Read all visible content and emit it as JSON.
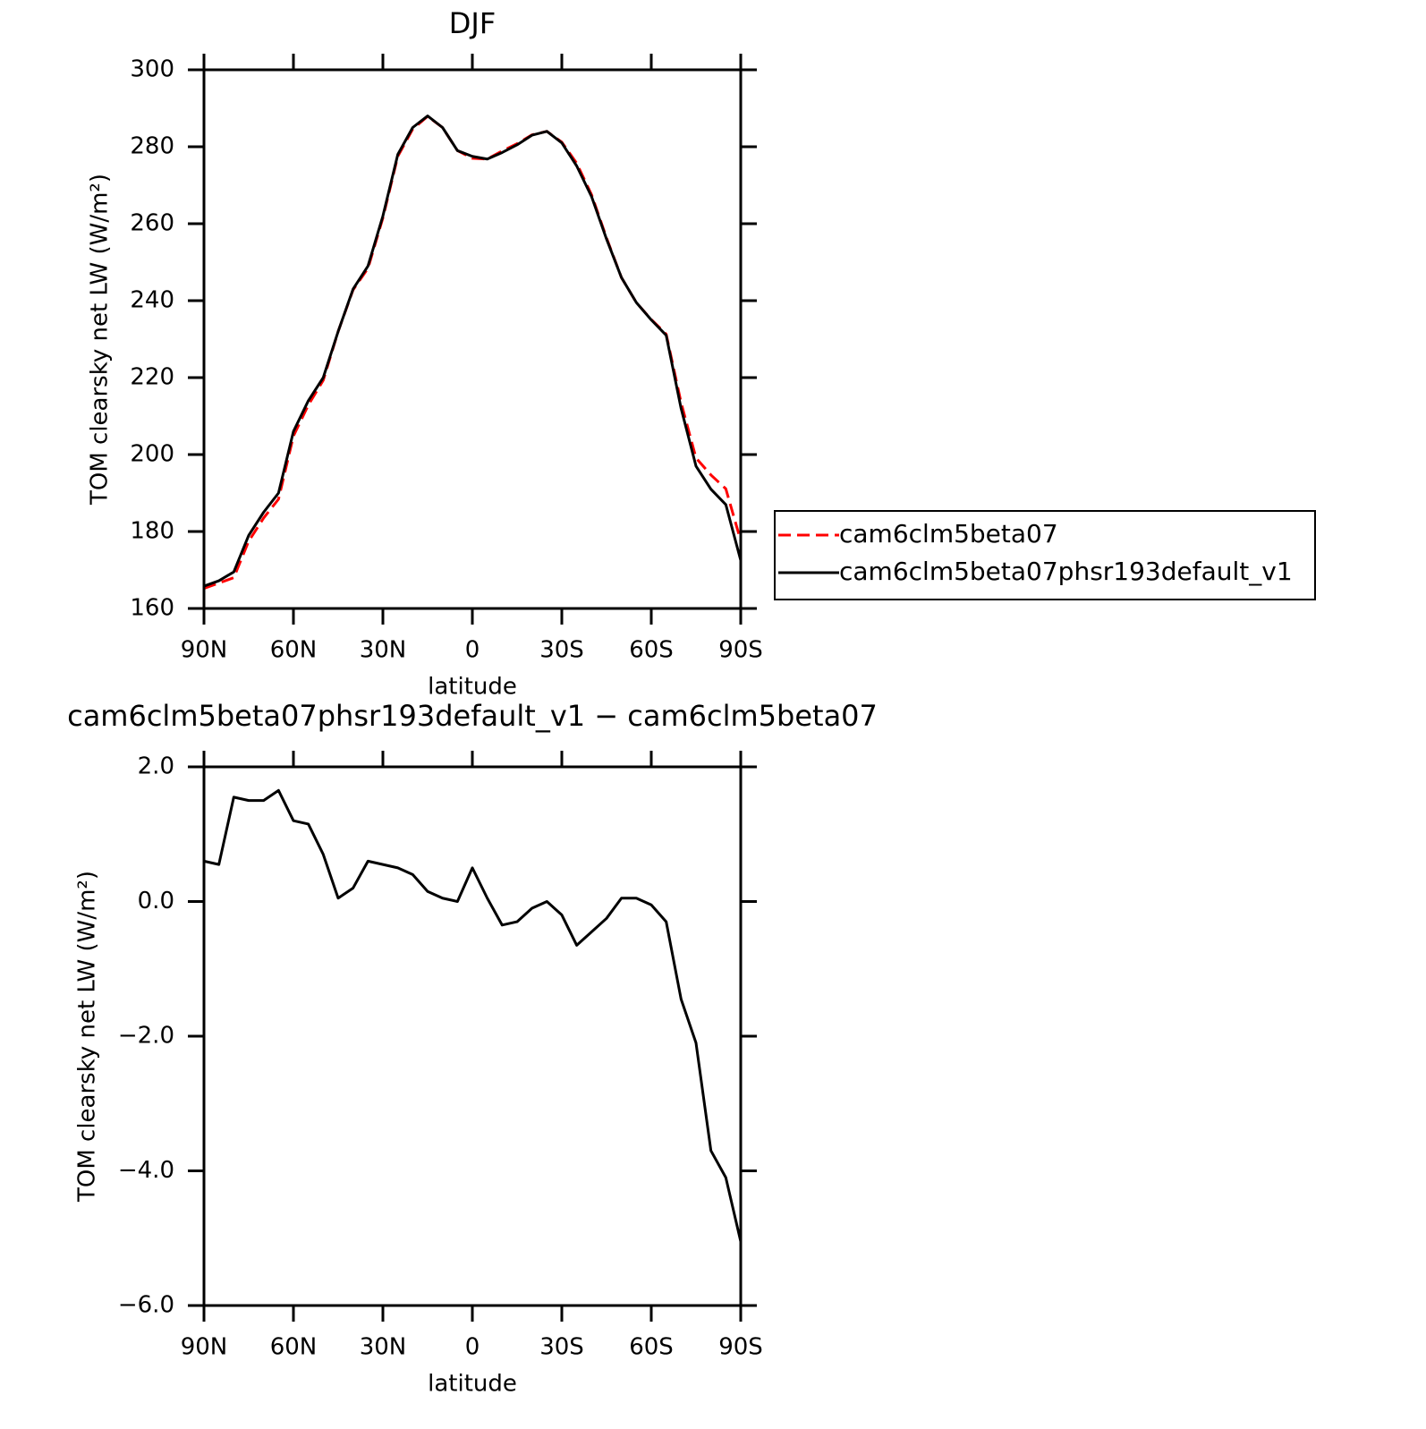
{
  "chart_data": [
    {
      "type": "line",
      "title": "DJF",
      "xlabel": "latitude",
      "ylabel": "TOM clearsky net LW (W/m²)",
      "x": [
        90,
        85,
        80,
        75,
        70,
        65,
        60,
        55,
        50,
        45,
        40,
        35,
        30,
        25,
        20,
        15,
        10,
        5,
        0,
        -5,
        -10,
        -15,
        -20,
        -25,
        -30,
        -35,
        -40,
        -45,
        -50,
        -55,
        -60,
        -65,
        -70,
        -75,
        -80,
        -85,
        -90
      ],
      "xlim": [
        90,
        -90
      ],
      "xticks": [
        {
          "value": 90,
          "label": "90N"
        },
        {
          "value": 60,
          "label": "60N"
        },
        {
          "value": 30,
          "label": "30N"
        },
        0,
        {
          "value": -30,
          "label": "30S"
        },
        {
          "value": -60,
          "label": "60S"
        },
        {
          "value": -90,
          "label": "90S"
        }
      ],
      "ylim": [
        160,
        300
      ],
      "yticks": [
        160,
        180,
        200,
        220,
        240,
        260,
        280,
        300
      ],
      "legend": "right",
      "series": [
        {
          "name": "cam6clm5beta07",
          "color": "#ff0000",
          "line_style": "dashed",
          "values": [
            165.2,
            166.6,
            168.0,
            177.5,
            183.5,
            188.4,
            204.8,
            212.9,
            219.3,
            232.0,
            242.8,
            248.4,
            261.5,
            277.5,
            284.6,
            287.9,
            285.0,
            279.0,
            277.0,
            276.8,
            278.9,
            280.8,
            283.1,
            284.0,
            281.2,
            275.7,
            267.5,
            256.3,
            246.0,
            239.5,
            235.1,
            231.3,
            213.5,
            199.1,
            194.7,
            191.1,
            177.6
          ]
        },
        {
          "name": "cam6clm5beta07phsr193default_v1",
          "color": "#000000",
          "line_style": "solid",
          "values": [
            165.8,
            167.2,
            169.5,
            179.0,
            185.0,
            190.0,
            206.0,
            214.0,
            220.0,
            232.0,
            243.0,
            249.0,
            262.0,
            278.0,
            285.0,
            288.0,
            285.0,
            279.0,
            277.5,
            276.8,
            278.5,
            280.5,
            283.0,
            284.0,
            281.0,
            275.0,
            267.0,
            256.0,
            246.0,
            239.5,
            235.0,
            231.0,
            212.0,
            197.0,
            191.0,
            187.0,
            172.5
          ]
        }
      ]
    },
    {
      "type": "line",
      "title": "cam6clm5beta07phsr193default_v1 − cam6clm5beta07",
      "xlabel": "latitude",
      "ylabel": "TOM clearsky net LW (W/m²)",
      "x": [
        90,
        85,
        80,
        75,
        70,
        65,
        60,
        55,
        50,
        45,
        40,
        35,
        30,
        25,
        20,
        15,
        10,
        5,
        0,
        -5,
        -10,
        -15,
        -20,
        -25,
        -30,
        -35,
        -40,
        -45,
        -50,
        -55,
        -60,
        -65,
        -70,
        -75,
        -80,
        -85,
        -90
      ],
      "xlim": [
        90,
        -90
      ],
      "xticks": [
        {
          "value": 90,
          "label": "90N"
        },
        {
          "value": 60,
          "label": "60N"
        },
        {
          "value": 30,
          "label": "30N"
        },
        0,
        {
          "value": -30,
          "label": "30S"
        },
        {
          "value": -60,
          "label": "60S"
        },
        {
          "value": -90,
          "label": "90S"
        }
      ],
      "ylim": [
        -6,
        2
      ],
      "yticks": [
        {
          "value": -6,
          "label": "−6.0"
        },
        {
          "value": -4,
          "label": "−4.0"
        },
        {
          "value": -2,
          "label": "−2.0"
        },
        {
          "value": 0,
          "label": "0.0"
        },
        {
          "value": 2,
          "label": "2.0"
        }
      ],
      "color": "#000000",
      "values": [
        0.6,
        0.55,
        1.55,
        1.5,
        1.5,
        1.65,
        1.2,
        1.15,
        0.7,
        0.05,
        0.2,
        0.6,
        0.55,
        0.5,
        0.4,
        0.15,
        0.05,
        0.0,
        0.5,
        0.05,
        -0.35,
        -0.3,
        -0.1,
        0.0,
        -0.2,
        -0.65,
        -0.45,
        -0.25,
        0.05,
        0.05,
        -0.05,
        -0.3,
        -1.45,
        -2.1,
        -3.7,
        -4.1,
        -5.05
      ]
    }
  ]
}
